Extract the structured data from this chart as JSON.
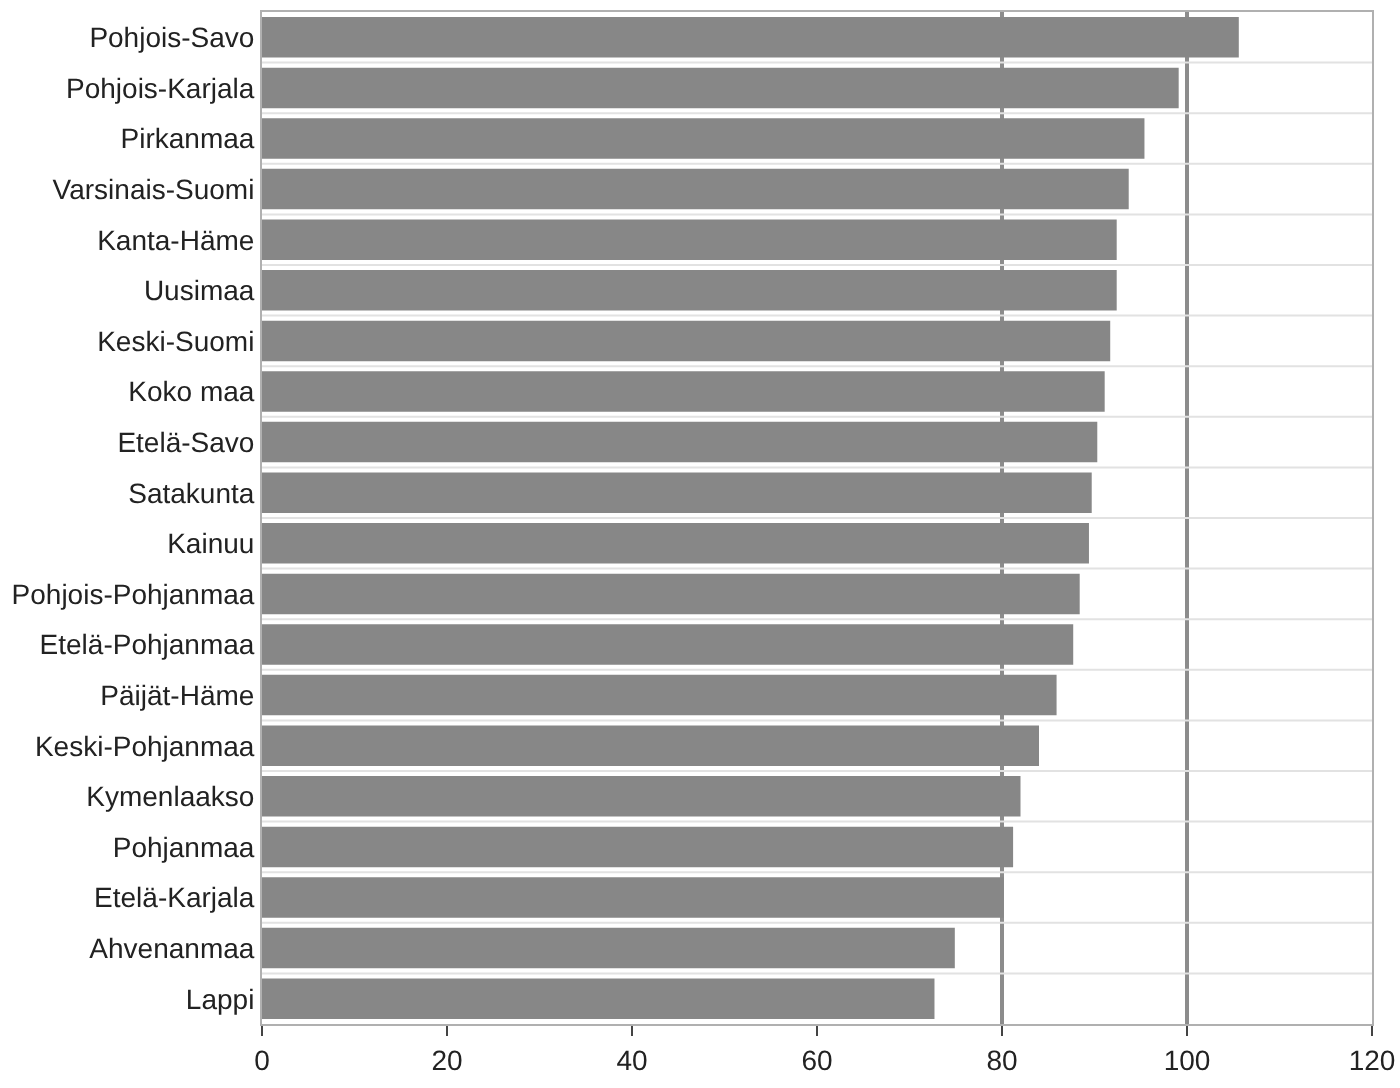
{
  "chart_data": {
    "type": "bar",
    "orientation": "horizontal",
    "categories": [
      "Pohjois-Savo",
      "Pohjois-Karjala",
      "Pirkanmaa",
      "Varsinais-Suomi",
      "Kanta-Häme",
      "Uusimaa",
      "Keski-Suomi",
      "Koko maa",
      "Etelä-Savo",
      "Satakunta",
      "Kainuu",
      "Pohjois-Pohjanmaa",
      "Etelä-Pohjanmaa",
      "Päijät-Häme",
      "Keski-Pohjanmaa",
      "Kymenlaakso",
      "Pohjanmaa",
      "Etelä-Karjala",
      "Ahvenanmaa",
      "Lappi"
    ],
    "values": [
      105.6,
      99.1,
      95.4,
      93.7,
      92.4,
      92.4,
      91.7,
      91.1,
      90.3,
      89.7,
      89.4,
      88.4,
      87.7,
      85.9,
      84.0,
      82.0,
      81.2,
      80.2,
      74.9,
      72.7
    ],
    "color": "#878787",
    "xlim": [
      0,
      120
    ],
    "xticks": [
      0,
      20,
      40,
      60,
      80,
      100,
      120
    ],
    "grid": false,
    "ref_lines": [
      {
        "axis": "x",
        "value": 80,
        "color": "#8c8c8c"
      },
      {
        "axis": "x",
        "value": 100,
        "color": "#8c8c8c"
      }
    ]
  }
}
